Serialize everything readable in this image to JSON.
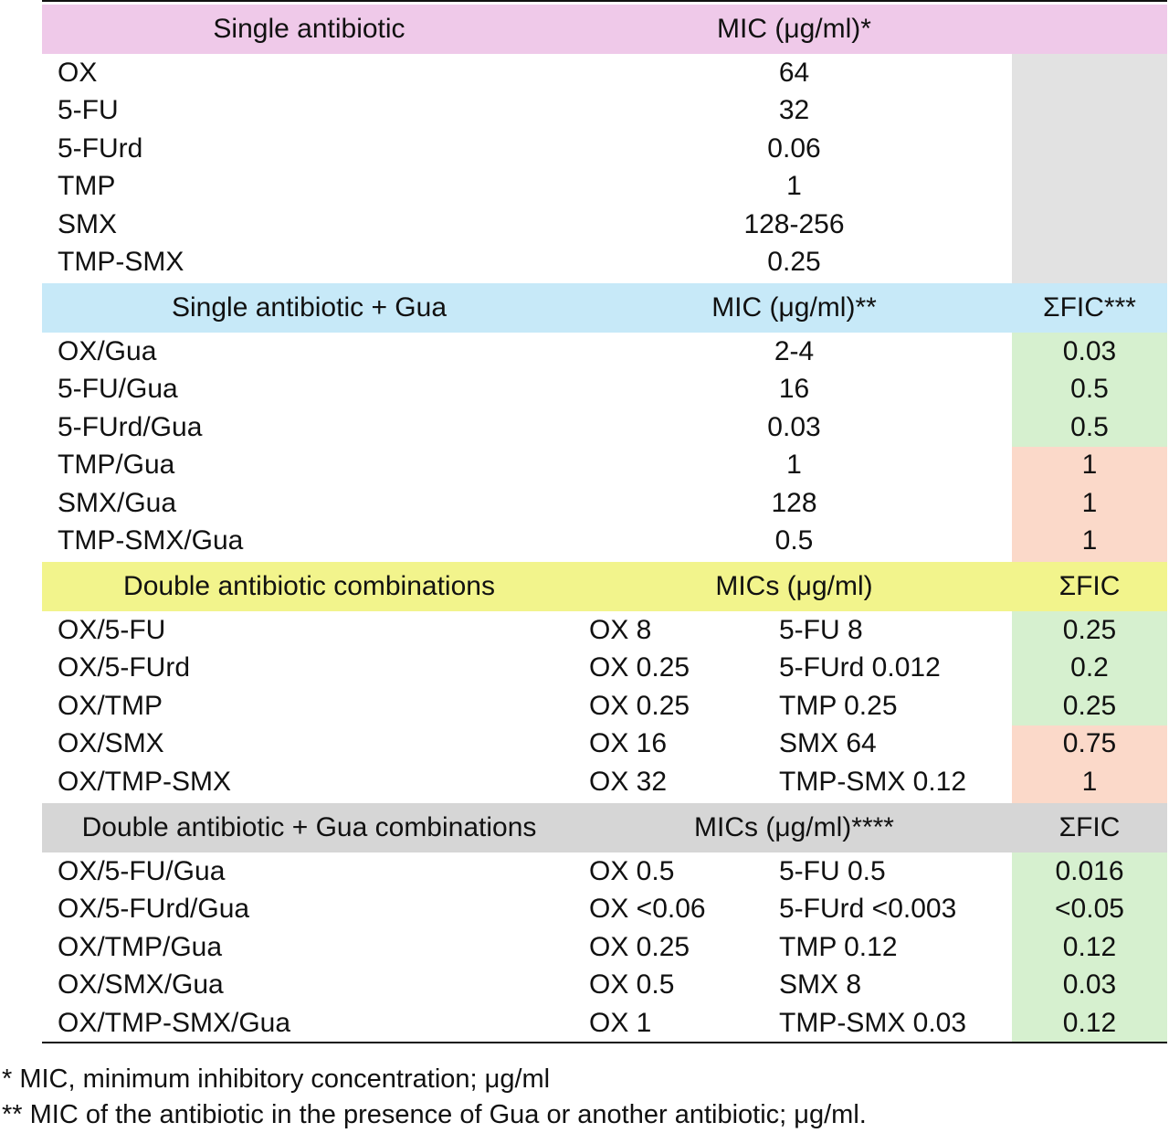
{
  "colors": {
    "header_pink": "#efc9e9",
    "header_blue": "#c7e9f8",
    "header_yellow": "#f2f48c",
    "header_grey": "#d6d6d6",
    "cell_grey": "#e2e2e2",
    "cell_green": "#d6f0cf",
    "cell_salmon": "#fbd9c9"
  },
  "sections": [
    {
      "header": {
        "name": "Single antibiotic",
        "mic": "MIC (μg/ml)*",
        "fic": ""
      },
      "rows": [
        {
          "name": "OX",
          "mic": "64",
          "fic": "",
          "fic_color": "grey"
        },
        {
          "name": "5-FU",
          "mic": "32",
          "fic": "",
          "fic_color": "grey"
        },
        {
          "name": "5-FUrd",
          "mic": "0.06",
          "fic": "",
          "fic_color": "grey"
        },
        {
          "name": "TMP",
          "mic": "1",
          "fic": "",
          "fic_color": "grey"
        },
        {
          "name": "SMX",
          "mic": "128-256",
          "fic": "",
          "fic_color": "grey"
        },
        {
          "name": "TMP-SMX",
          "mic": "0.25",
          "fic": "",
          "fic_color": "grey"
        }
      ]
    },
    {
      "header": {
        "name": "Single antibiotic + Gua",
        "mic": "MIC (μg/ml)**",
        "fic": "ΣFIC***"
      },
      "rows": [
        {
          "name": "OX/Gua",
          "mic": "2-4",
          "fic": "0.03",
          "fic_color": "green"
        },
        {
          "name": "5-FU/Gua",
          "mic": "16",
          "fic": "0.5",
          "fic_color": "green"
        },
        {
          "name": "5-FUrd/Gua",
          "mic": "0.03",
          "fic": "0.5",
          "fic_color": "green"
        },
        {
          "name": "TMP/Gua",
          "mic": "1",
          "fic": "1",
          "fic_color": "salmon"
        },
        {
          "name": "SMX/Gua",
          "mic": "128",
          "fic": "1",
          "fic_color": "salmon"
        },
        {
          "name": "TMP-SMX/Gua",
          "mic": "0.5",
          "fic": "1",
          "fic_color": "salmon"
        }
      ]
    },
    {
      "header": {
        "name": "Double antibiotic combinations",
        "mic": "MICs (μg/ml)",
        "fic": "ΣFIC"
      },
      "rows": [
        {
          "name": "OX/5-FU",
          "mic1": "OX 8",
          "mic2": "5-FU 8",
          "fic": "0.25",
          "fic_color": "green"
        },
        {
          "name": "OX/5-FUrd",
          "mic1": "OX 0.25",
          "mic2": "5-FUrd 0.012",
          "fic": "0.2",
          "fic_color": "green"
        },
        {
          "name": "OX/TMP",
          "mic1": "OX 0.25",
          "mic2": "TMP 0.25",
          "fic": "0.25",
          "fic_color": "green"
        },
        {
          "name": "OX/SMX",
          "mic1": "OX 16",
          "mic2": "SMX 64",
          "fic": "0.75",
          "fic_color": "salmon"
        },
        {
          "name": "OX/TMP-SMX",
          "mic1": "OX 32",
          "mic2": "TMP-SMX 0.12",
          "fic": "1",
          "fic_color": "salmon"
        }
      ]
    },
    {
      "header": {
        "name": "Double antibiotic + Gua combinations",
        "mic": "MICs (μg/ml)****",
        "fic": "ΣFIC"
      },
      "rows": [
        {
          "name": "OX/5-FU/Gua",
          "mic1": "OX 0.5",
          "mic2": "5-FU 0.5",
          "fic": "0.016",
          "fic_color": "green"
        },
        {
          "name": "OX/5-FUrd/Gua",
          "mic1": "OX <0.06",
          "mic2": "5-FUrd <0.003",
          "fic": "<0.05",
          "fic_color": "green"
        },
        {
          "name": "OX/TMP/Gua",
          "mic1": "OX 0.25",
          "mic2": "TMP 0.12",
          "fic": "0.12",
          "fic_color": "green"
        },
        {
          "name": "OX/SMX/Gua",
          "mic1": "OX 0.5",
          "mic2": "SMX 8",
          "fic": "0.03",
          "fic_color": "green"
        },
        {
          "name": "OX/TMP-SMX/Gua",
          "mic1": "OX 1",
          "mic2": "TMP-SMX 0.03",
          "fic": "0.12",
          "fic_color": "green"
        }
      ]
    }
  ],
  "footnotes": [
    "* MIC, minimum inhibitory concentration; μg/ml",
    "** MIC of the antibiotic in the presence of Gua or another antibiotic; μg/ml."
  ]
}
